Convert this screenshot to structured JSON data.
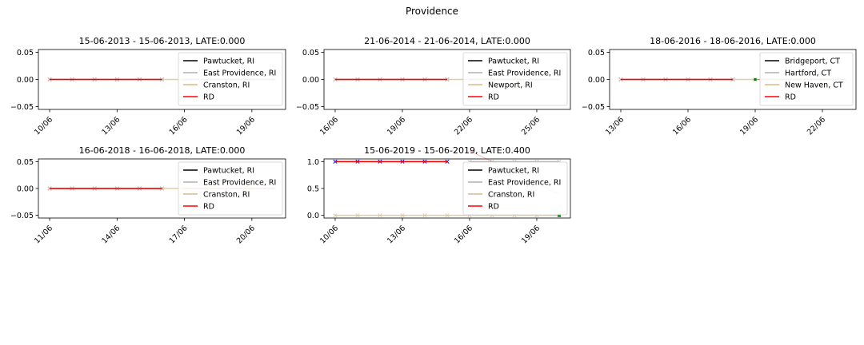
{
  "figure": {
    "title": "Providence"
  },
  "colors": {
    "series": [
      "#000000",
      "#b0b0b0",
      "#deb887",
      "#ff0000"
    ],
    "marker_blue": "#0000ff",
    "marker_green": "#008000"
  },
  "chart_data": [
    {
      "type": "line",
      "title": "15-06-2013 - 15-06-2013, LATE:0.000",
      "xlabel": "",
      "ylabel": "",
      "ylim": [
        -0.055,
        0.055
      ],
      "yticks": [
        "0.05",
        "0.00",
        "−0.05"
      ],
      "yticks_values": [
        0.05,
        0.0,
        -0.05
      ],
      "xticks": [
        "10/06",
        "13/06",
        "16/06",
        "19/06"
      ],
      "xticks_values": [
        0,
        3,
        6,
        9
      ],
      "xlim": [
        -0.5,
        10.5
      ],
      "legend": "upper-right",
      "series": [
        {
          "name": "Pawtucket, RI",
          "x": [
            0,
            1,
            2,
            3,
            4,
            5
          ],
          "values": [
            0,
            0,
            0,
            0,
            0,
            0
          ]
        },
        {
          "name": "East Providence, RI",
          "x": [
            6,
            7,
            8,
            9,
            10
          ],
          "values": [
            0,
            0,
            0,
            0,
            0
          ]
        },
        {
          "name": "Cranston, RI",
          "x": [
            0,
            1,
            2,
            3,
            4,
            5,
            6,
            7,
            8,
            9,
            10
          ],
          "values": [
            0,
            0,
            0,
            0,
            0,
            0,
            0,
            0,
            0,
            0,
            0
          ]
        },
        {
          "name": "RD",
          "x": [
            0,
            1,
            2,
            3,
            4,
            5,
            6,
            10
          ],
          "values": [
            0,
            0,
            0,
            0,
            0,
            0,
            0,
            0
          ]
        }
      ]
    },
    {
      "type": "line",
      "title": "21-06-2014 - 21-06-2014, LATE:0.000",
      "xlabel": "",
      "ylabel": "",
      "ylim": [
        -0.055,
        0.055
      ],
      "yticks": [
        "0.05",
        "0.00",
        "−0.05"
      ],
      "yticks_values": [
        0.05,
        0.0,
        -0.05
      ],
      "xticks": [
        "16/06",
        "19/06",
        "22/06",
        "25/06"
      ],
      "xticks_values": [
        0,
        3,
        6,
        9
      ],
      "xlim": [
        -0.5,
        10.5
      ],
      "legend": "upper-right",
      "series": [
        {
          "name": "Pawtucket, RI",
          "x": [
            0,
            1,
            2,
            3,
            4,
            5
          ],
          "values": [
            0,
            0,
            0,
            0,
            0,
            0
          ]
        },
        {
          "name": "East Providence, RI",
          "x": [
            6,
            7,
            8,
            9,
            10
          ],
          "values": [
            0,
            0,
            0,
            0,
            0
          ]
        },
        {
          "name": "Newport, RI",
          "x": [
            0,
            1,
            2,
            3,
            4,
            5,
            6,
            7,
            8,
            9,
            10
          ],
          "values": [
            0,
            0,
            0,
            0,
            0,
            0,
            0,
            0,
            0,
            0,
            0
          ]
        },
        {
          "name": "RD",
          "x": [
            0,
            1,
            2,
            3,
            4,
            5,
            6,
            10
          ],
          "values": [
            0,
            0,
            0,
            0,
            0,
            0,
            0,
            0
          ]
        }
      ]
    },
    {
      "type": "line",
      "title": "18-06-2016 - 18-06-2016, LATE:0.000",
      "xlabel": "",
      "ylabel": "",
      "ylim": [
        -0.055,
        0.055
      ],
      "yticks": [
        "0.05",
        "0.00",
        "−0.05"
      ],
      "yticks_values": [
        0.05,
        0.0,
        -0.05
      ],
      "xticks": [
        "13/06",
        "16/06",
        "19/06",
        "22/06"
      ],
      "xticks_values": [
        0,
        3,
        6,
        9
      ],
      "xlim": [
        -0.5,
        10.5
      ],
      "legend": "upper-right",
      "series": [
        {
          "name": "Bridgeport, CT",
          "x": [
            0,
            1,
            2,
            3,
            4,
            5
          ],
          "values": [
            0,
            0,
            0,
            0,
            0,
            0
          ]
        },
        {
          "name": "Hartford, CT",
          "x": [
            6,
            7,
            8,
            9,
            10
          ],
          "values": [
            0,
            0,
            0,
            0,
            0
          ]
        },
        {
          "name": "New Haven, CT",
          "x": [
            0,
            1,
            2,
            3,
            4,
            5,
            6,
            7,
            8,
            9,
            10
          ],
          "values": [
            0,
            0,
            0,
            0,
            0,
            0,
            0,
            0,
            0,
            0,
            0
          ]
        },
        {
          "name": "RD",
          "x": [
            0,
            1,
            2,
            3,
            4,
            5,
            6,
            10
          ],
          "values": [
            0,
            0,
            0,
            0,
            0,
            0,
            0,
            0
          ]
        }
      ]
    },
    {
      "type": "line",
      "title": "16-06-2018 - 16-06-2018, LATE:0.000",
      "xlabel": "",
      "ylabel": "",
      "ylim": [
        -0.055,
        0.055
      ],
      "yticks": [
        "0.05",
        "0.00",
        "−0.05"
      ],
      "yticks_values": [
        0.05,
        0.0,
        -0.05
      ],
      "xticks": [
        "11/06",
        "14/06",
        "17/06",
        "20/06"
      ],
      "xticks_values": [
        0,
        3,
        6,
        9
      ],
      "xlim": [
        -0.5,
        10.5
      ],
      "legend": "upper-right",
      "series": [
        {
          "name": "Pawtucket, RI",
          "x": [
            0,
            1,
            2,
            3,
            4,
            5
          ],
          "values": [
            0,
            0,
            0,
            0,
            0,
            0
          ]
        },
        {
          "name": "East Providence, RI",
          "x": [
            6,
            7,
            8,
            9,
            10
          ],
          "values": [
            0,
            0,
            0,
            0,
            0
          ]
        },
        {
          "name": "Cranston, RI",
          "x": [
            0,
            1,
            2,
            3,
            4,
            5,
            6,
            7,
            8,
            9,
            10
          ],
          "values": [
            0,
            0,
            0,
            0,
            0,
            0,
            0,
            0,
            0,
            0,
            0
          ]
        },
        {
          "name": "RD",
          "x": [
            0,
            1,
            2,
            3,
            4,
            5,
            6,
            10
          ],
          "values": [
            0,
            0,
            0,
            0,
            0,
            0,
            0,
            0
          ]
        }
      ]
    },
    {
      "type": "line",
      "title": "15-06-2019 - 15-06-2019, LATE:0.400",
      "xlabel": "",
      "ylabel": "",
      "ylim": [
        -0.05,
        1.05
      ],
      "yticks": [
        "1.0",
        "0.5",
        "0.0"
      ],
      "yticks_values": [
        1.0,
        0.5,
        0.0
      ],
      "xticks": [
        "10/06",
        "13/06",
        "16/06",
        "19/06"
      ],
      "xticks_values": [
        0,
        3,
        6,
        9
      ],
      "xlim": [
        -0.5,
        10.5
      ],
      "legend": "upper-right",
      "series": [
        {
          "name": "Pawtucket, RI",
          "x": [
            0,
            1,
            2,
            3,
            4,
            5
          ],
          "values": [
            1,
            1,
            1,
            1,
            1,
            1
          ]
        },
        {
          "name": "East Providence, RI",
          "x": [
            6,
            7,
            8,
            9,
            10
          ],
          "values": [
            1,
            1,
            1,
            1,
            1
          ]
        },
        {
          "name": "Cranston, RI",
          "x": [
            0,
            1,
            2,
            3,
            4,
            5,
            6,
            7,
            8,
            9,
            10
          ],
          "values": [
            0,
            0,
            0,
            0,
            0,
            0,
            0,
            0,
            0,
            0,
            0
          ]
        },
        {
          "name": "RD",
          "x": [
            0,
            1,
            2,
            3,
            4,
            5,
            6,
            10
          ],
          "values": [
            1,
            1,
            1,
            1,
            1,
            1,
            1.2,
            0.4
          ]
        }
      ]
    }
  ]
}
